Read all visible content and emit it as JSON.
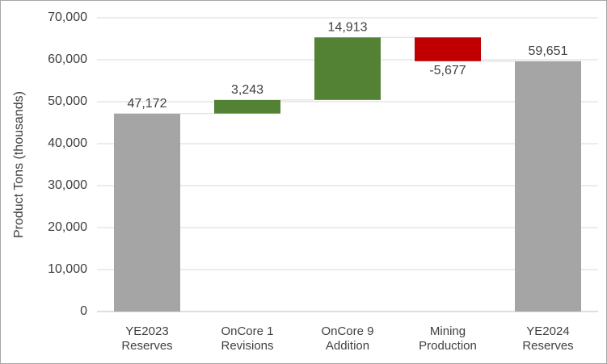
{
  "chart_data": {
    "type": "waterfall",
    "y_label": "Product Tons (thousands)",
    "categories": [
      [
        "YE2023",
        "Reserves"
      ],
      [
        "OnCore 1",
        "Revisions"
      ],
      [
        "OnCore 9",
        "Addition"
      ],
      [
        "Mining",
        "Production"
      ],
      [
        "YE2024",
        "Reserves"
      ]
    ],
    "measures": [
      "absolute",
      "relative",
      "relative",
      "relative",
      "absolute"
    ],
    "values": [
      47172,
      3243,
      14913,
      -5677,
      59651
    ],
    "value_labels": [
      "47,172",
      "3,243",
      "14,913",
      "-5,677",
      "59,651"
    ],
    "colors": [
      "#a5a5a5",
      "#548235",
      "#548235",
      "#c00000",
      "#a5a5a5"
    ],
    "ylim": [
      0,
      70000
    ],
    "yticks": [
      0,
      {
        "value": 10000,
        "label": "10,000"
      },
      {
        "value": 20000,
        "label": "20,000"
      },
      {
        "value": 30000,
        "label": "30,000"
      },
      {
        "value": 40000,
        "label": "40,000"
      },
      {
        "value": 50000,
        "label": "50,000"
      },
      {
        "value": 60000,
        "label": "60,000"
      },
      {
        "value": 70000,
        "label": "70,000"
      }
    ],
    "grid": true
  }
}
